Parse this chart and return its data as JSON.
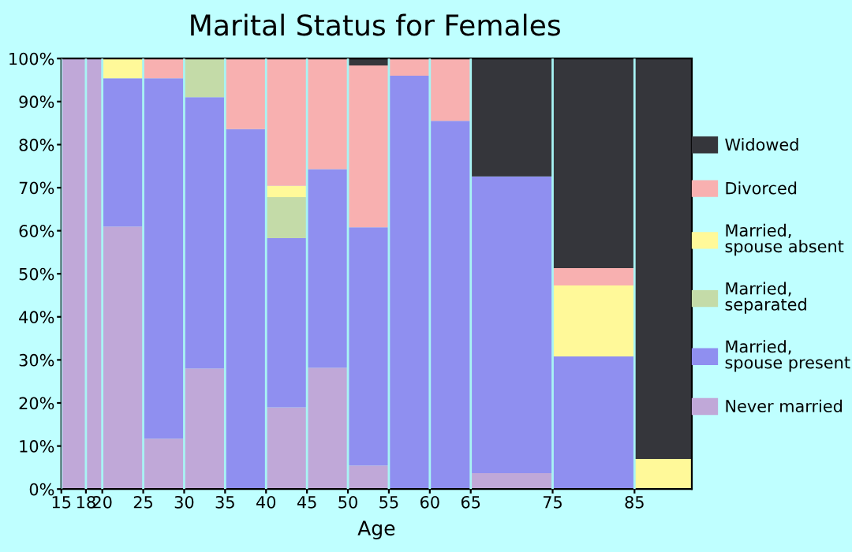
{
  "chart_data": {
    "type": "bar",
    "stacked": true,
    "title": "Marital Status for Females",
    "xlabel": "Age",
    "x": [
      16.5,
      19,
      22.5,
      27.5,
      32.5,
      37.5,
      42.5,
      47.5,
      52.5,
      57.5,
      62.5,
      70,
      80,
      88.5
    ],
    "xlim": [
      15,
      92
    ],
    "xticks": [
      15,
      18,
      20,
      25,
      30,
      35,
      40,
      45,
      50,
      55,
      60,
      65,
      75,
      85
    ],
    "ylim": [
      0,
      100
    ],
    "yticks": [
      {
        "value": 0,
        "label": "0%"
      },
      {
        "value": 10,
        "label": "10%"
      },
      {
        "value": 20,
        "label": "20%"
      },
      {
        "value": 30,
        "label": "30%"
      },
      {
        "value": 40,
        "label": "40%"
      },
      {
        "value": 50,
        "label": "50%"
      },
      {
        "value": 60,
        "label": "60%"
      },
      {
        "value": 70,
        "label": "70%"
      },
      {
        "value": 80,
        "label": "80%"
      },
      {
        "value": 90,
        "label": "90%"
      },
      {
        "value": 100,
        "label": "100%"
      }
    ],
    "grid": "x",
    "legend": "right",
    "series": [
      {
        "name": "Never married",
        "color": "#c0a8d8",
        "values": [
          100,
          100,
          61,
          11.7,
          28,
          0,
          19,
          28.2,
          5.5,
          0,
          0,
          3.7,
          0,
          0
        ]
      },
      {
        "name": "Married,\nspouse present",
        "color": "#8f8ff0",
        "values": [
          0,
          0,
          34.4,
          83.7,
          63,
          83.6,
          39.3,
          46.1,
          55.3,
          96,
          85.5,
          68.9,
          30.8,
          0
        ]
      },
      {
        "name": "Married,\nseparated",
        "color": "#c4dba8",
        "values": [
          0,
          0,
          0,
          0,
          9,
          0,
          9.5,
          0,
          0,
          0,
          0,
          0,
          0,
          0
        ]
      },
      {
        "name": "Married,\nspouse absent",
        "color": "#fff999",
        "values": [
          0,
          0,
          4.6,
          0,
          0,
          0,
          2.6,
          0,
          0,
          0,
          0,
          0,
          16.5,
          7
        ]
      },
      {
        "name": "Divorced",
        "color": "#f8b0b0",
        "values": [
          0,
          0,
          0,
          4.6,
          0,
          16.4,
          29.6,
          25.7,
          37.6,
          4,
          14.5,
          0,
          4,
          0
        ]
      },
      {
        "name": "Widowed",
        "color": "#35363b",
        "values": [
          0,
          0,
          0,
          0,
          0,
          0,
          0,
          0,
          1.6,
          0,
          0,
          27.4,
          48.7,
          93
        ]
      }
    ]
  }
}
